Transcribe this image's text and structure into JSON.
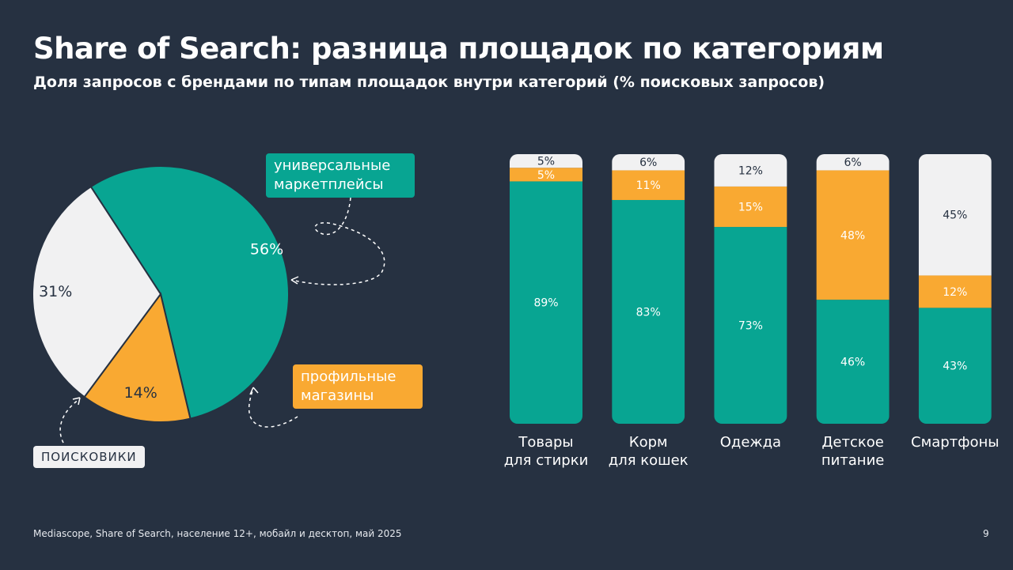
{
  "header": {
    "title": "Share of Search: разница площадок по категориям",
    "subtitle": "Доля запросов с брендами по типам площадок внутри категорий (% поисковых запросов)"
  },
  "footer": {
    "source": "Mediascope, Share of Search, население 12+, мобайл и десктоп, май 2025",
    "page_number": "9"
  },
  "colors": {
    "background": "#263141",
    "marketplaces": "#08a592",
    "specialty_stores": "#f9a932",
    "search_engines": "#f1f1f2"
  },
  "chart_data": [
    {
      "type": "pie",
      "slices": [
        {
          "name": "универсальные маркетплейсы",
          "value": 56,
          "label": "56%",
          "color": "#08a592"
        },
        {
          "name": "профильные магазины",
          "value": 14,
          "label": "14%",
          "color": "#f9a932"
        },
        {
          "name": "поисковики",
          "value": 31,
          "label": "31%",
          "color": "#f1f1f2"
        }
      ],
      "callouts": {
        "marketplaces": "универсальные маркетплейсы",
        "specialty_stores": "профильные магазины",
        "search_engines": "ПОИСКОВИКИ"
      }
    },
    {
      "type": "bar",
      "stacked": true,
      "normalized_to": 100,
      "categories": [
        "Товары для стирки",
        "Корм для кошек",
        "Одежда",
        "Детское питание",
        "Смартфоны"
      ],
      "series": [
        {
          "key": "marketplaces",
          "color": "#08a592",
          "values": [
            89,
            83,
            73,
            46,
            43
          ],
          "labels": [
            "89%",
            "83%",
            "73%",
            "46%",
            "43%"
          ]
        },
        {
          "key": "specialty_stores",
          "color": "#f9a932",
          "values": [
            5,
            11,
            15,
            48,
            12
          ],
          "labels": [
            "5%",
            "11%",
            "15%",
            "48%",
            "12%"
          ]
        },
        {
          "key": "search_engines",
          "color": "#f1f1f2",
          "values": [
            5,
            6,
            12,
            6,
            45
          ],
          "labels": [
            "5%",
            "6%",
            "12%",
            "6%",
            "45%"
          ]
        }
      ]
    }
  ]
}
